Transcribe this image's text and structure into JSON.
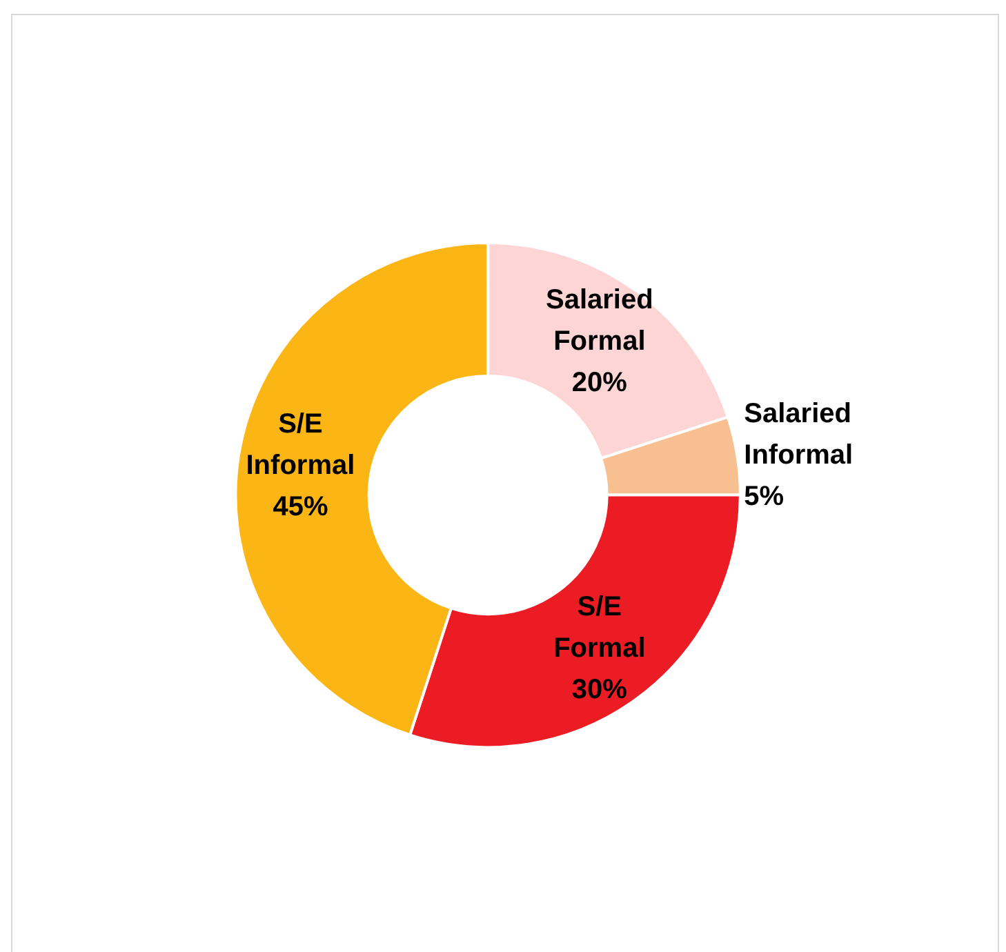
{
  "chart_data": {
    "type": "donut",
    "categories": [
      "Salaried Formal",
      "Salaried Informal",
      "S/E Formal",
      "S/E Informal"
    ],
    "values": [
      20,
      5,
      30,
      45
    ],
    "value_labels": [
      "20%",
      "5%",
      "30%",
      "45%"
    ],
    "colors": [
      "#fdd5d5",
      "#f8c090",
      "#ec1c24",
      "#fbb615"
    ],
    "legend": false
  }
}
